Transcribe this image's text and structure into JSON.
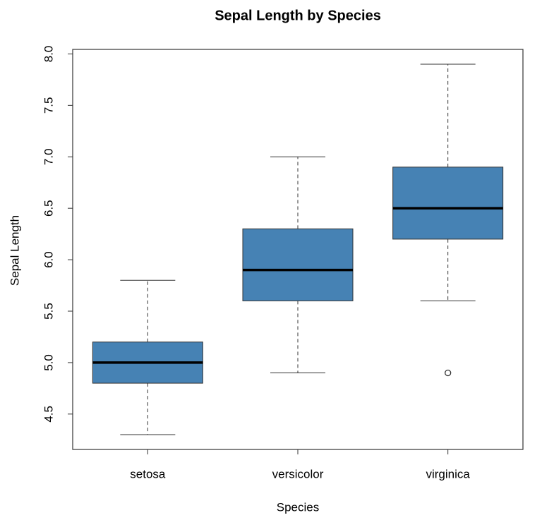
{
  "chart_data": {
    "type": "box",
    "title": "Sepal Length by Species",
    "x_label": "Species",
    "y_label": "Sepal Length",
    "categories": [
      "setosa",
      "versicolor",
      "virginica"
    ],
    "boxes": [
      {
        "min": 4.3,
        "q1": 4.8,
        "median": 5.0,
        "q3": 5.2,
        "max": 5.8,
        "outliers": []
      },
      {
        "min": 4.9,
        "q1": 5.6,
        "median": 5.9,
        "q3": 6.3,
        "max": 7.0,
        "outliers": []
      },
      {
        "min": 5.6,
        "q1": 6.2,
        "median": 6.5,
        "q3": 6.9,
        "max": 7.9,
        "outliers": [
          4.9
        ]
      }
    ],
    "color": "#4682b4",
    "ylim": [
      4.156,
      8.044
    ],
    "yticks": [
      4.5,
      {
        "value": 5,
        "label": "5.0"
      },
      5.5,
      {
        "value": 6,
        "label": "6.0"
      },
      6.5,
      {
        "value": 7,
        "label": "7.0"
      },
      7.5,
      {
        "value": 8,
        "label": "8.0"
      }
    ]
  }
}
